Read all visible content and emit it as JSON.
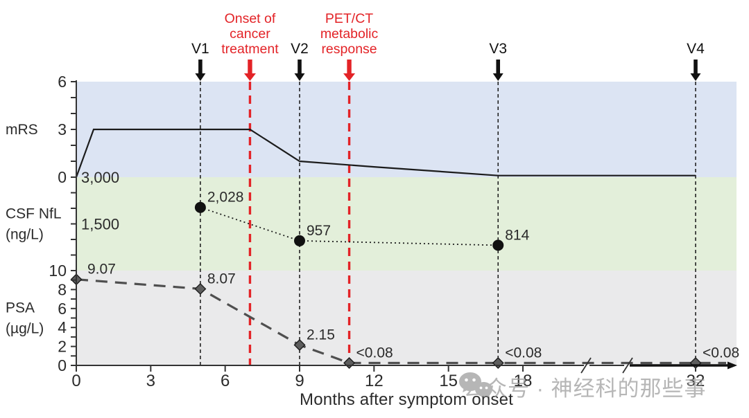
{
  "figure": {
    "watermark": {
      "text": "公众号 · 神经科的那些事",
      "icon": "wechat-icon"
    },
    "colors": {
      "band_mrs": "#dce4f3",
      "band_csf": "#e3efda",
      "band_psa": "#eaeaeb",
      "red": "#e32327",
      "line_black": "#1b1b1b",
      "psa_gray": "#4f4f4f",
      "axis": "#333333",
      "watermark_gray": "#9b9b9b"
    }
  },
  "chart_data": {
    "type": "line",
    "xlabel": "Months after symptom onset",
    "x_ticks": [
      {
        "m": 0,
        "t": "0"
      },
      {
        "m": 3,
        "t": "3"
      },
      {
        "m": 6,
        "t": "6"
      },
      {
        "m": 9,
        "t": "9"
      },
      {
        "m": 12,
        "t": "12"
      },
      {
        "m": 15,
        "t": "15"
      },
      {
        "m": 18,
        "t": "18"
      },
      {
        "m": 32,
        "t": "32"
      }
    ],
    "x_axis_break": {
      "between": [
        18,
        32
      ]
    },
    "events": [
      {
        "id": "v1",
        "label_lines": [
          "V1"
        ],
        "month": 5,
        "color": "black"
      },
      {
        "id": "treatment-onset",
        "label_lines": [
          "Onset of",
          "cancer",
          "treatment"
        ],
        "month": 7,
        "color": "red"
      },
      {
        "id": "v2",
        "label_lines": [
          "V2"
        ],
        "month": 9,
        "color": "black"
      },
      {
        "id": "petct-response",
        "label_lines": [
          "PET/CT",
          "metabolic",
          "response"
        ],
        "month": 11,
        "color": "red"
      },
      {
        "id": "v3",
        "label_lines": [
          "V3"
        ],
        "month": 17,
        "color": "black"
      },
      {
        "id": "v4",
        "label_lines": [
          "V4"
        ],
        "month": 32,
        "color": "black"
      }
    ],
    "panels": [
      {
        "id": "mrs",
        "side_label_lines": [
          "mRS"
        ],
        "ylim": [
          0,
          6
        ],
        "yticks": [
          {
            "v": 6,
            "t": "6"
          },
          {
            "v": 3,
            "t": "3"
          },
          {
            "v": 0,
            "t": "0"
          }
        ],
        "minor_tick_step": 1,
        "band_color_key": "band_mrs",
        "series": {
          "name": "mRS",
          "style": "solid",
          "marker": "none",
          "x": [
            0,
            0.7,
            7,
            9,
            12,
            17,
            32
          ],
          "y": [
            0,
            3,
            3,
            1,
            0.65,
            0.1,
            0.1
          ]
        }
      },
      {
        "id": "csf",
        "side_label_lines": [
          "CSF NfL",
          "(ng/L)"
        ],
        "ylim": [
          0,
          3000
        ],
        "yticks": [],
        "inner_axis_labels": [
          {
            "v": 3000,
            "t": "3,000"
          },
          {
            "v": 1500,
            "t": "1,500"
          }
        ],
        "minor_tick_step": 500,
        "band_color_key": "band_csf",
        "series": {
          "name": "CSF NfL",
          "style": "dotted",
          "marker": "circle",
          "x": [
            5,
            9,
            17
          ],
          "y": [
            2028,
            957,
            814
          ],
          "point_labels": [
            "2,028",
            "957",
            "814"
          ]
        }
      },
      {
        "id": "psa",
        "side_label_lines": [
          "PSA",
          "(µg/L)"
        ],
        "ylim": [
          0,
          10
        ],
        "yticks": [
          {
            "v": 10,
            "t": "10"
          },
          {
            "v": 8,
            "t": "8"
          },
          {
            "v": 6,
            "t": "6"
          },
          {
            "v": 4,
            "t": "4"
          },
          {
            "v": 2,
            "t": "2"
          },
          {
            "v": 0,
            "t": "0"
          }
        ],
        "minor_tick_step": 1,
        "band_color_key": "band_psa",
        "series": {
          "name": "PSA",
          "style": "dashed",
          "marker": "diamond",
          "x": [
            0,
            5,
            9,
            11,
            17,
            32
          ],
          "y": [
            9.07,
            8.07,
            2.15,
            0.08,
            0.08,
            0.08
          ],
          "point_labels": [
            "9.07",
            "8.07",
            "2.15",
            "<0.08",
            "<0.08",
            "<0.08"
          ]
        }
      }
    ]
  }
}
